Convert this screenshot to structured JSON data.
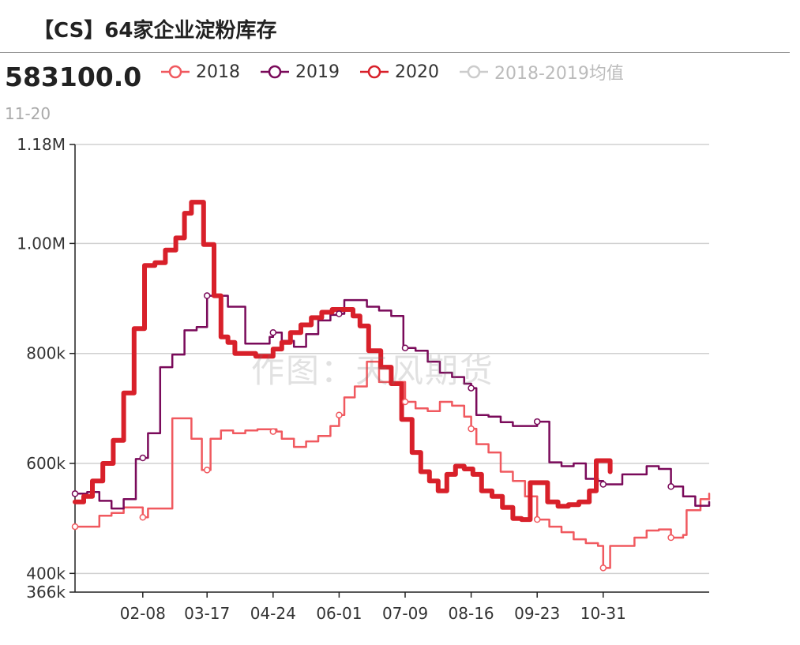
{
  "header": {
    "title": "【CS】64家企业淀粉库存",
    "current_value": "583100.0",
    "current_date": "11-20"
  },
  "watermark": "作图：天风期货",
  "legend": [
    {
      "label": "2018",
      "color": "#f0595f",
      "muted": false
    },
    {
      "label": "2019",
      "color": "#7a0a5a",
      "muted": false
    },
    {
      "label": "2020",
      "color": "#d8202a",
      "muted": false
    },
    {
      "label": "2018-2019均值",
      "color": "#cccccc",
      "muted": true
    }
  ],
  "chart_data": {
    "type": "line",
    "title": "【CS】64家企业淀粉库存",
    "xlabel": "",
    "ylabel": "",
    "x_ticks": [
      "02-08",
      "03-17",
      "04-24",
      "06-01",
      "07-09",
      "08-16",
      "09-23",
      "10-31"
    ],
    "x_range_days": [
      0,
      365
    ],
    "x_tick_days": [
      39,
      76,
      114,
      152,
      190,
      228,
      266,
      304
    ],
    "y_ticks": [
      {
        "value": 366000,
        "label": "366k"
      },
      {
        "value": 400000,
        "label": "400k"
      },
      {
        "value": 600000,
        "label": "600k"
      },
      {
        "value": 800000,
        "label": "800k"
      },
      {
        "value": 1000000,
        "label": "1.00M"
      },
      {
        "value": 1180000,
        "label": "1.18M"
      }
    ],
    "ylim": [
      366000,
      1180000
    ],
    "grid": true,
    "series": [
      {
        "name": "2018",
        "color": "#f0595f",
        "width": 2.5,
        "points": [
          [
            0,
            485000
          ],
          [
            7,
            485000
          ],
          [
            14,
            505000
          ],
          [
            21,
            510000
          ],
          [
            28,
            520000
          ],
          [
            35,
            520000
          ],
          [
            39,
            502000
          ],
          [
            42,
            518000
          ],
          [
            49,
            518000
          ],
          [
            53,
            518000
          ],
          [
            56,
            682000
          ],
          [
            63,
            682000
          ],
          [
            67,
            645000
          ],
          [
            70,
            645000
          ],
          [
            73,
            588000
          ],
          [
            76,
            588000
          ],
          [
            78,
            645000
          ],
          [
            84,
            660000
          ],
          [
            91,
            655000
          ],
          [
            98,
            660000
          ],
          [
            105,
            662000
          ],
          [
            112,
            662000
          ],
          [
            116,
            658000
          ],
          [
            119,
            645000
          ],
          [
            126,
            630000
          ],
          [
            133,
            640000
          ],
          [
            140,
            650000
          ],
          [
            147,
            668000
          ],
          [
            152,
            688000
          ],
          [
            155,
            720000
          ],
          [
            161,
            740000
          ],
          [
            168,
            785000
          ],
          [
            175,
            748000
          ],
          [
            182,
            748000
          ],
          [
            189,
            748000
          ],
          [
            190,
            712000
          ],
          [
            196,
            700000
          ],
          [
            203,
            695000
          ],
          [
            210,
            712000
          ],
          [
            217,
            705000
          ],
          [
            224,
            685000
          ],
          [
            228,
            663000
          ],
          [
            231,
            635000
          ],
          [
            238,
            620000
          ],
          [
            245,
            585000
          ],
          [
            252,
            568000
          ],
          [
            259,
            540000
          ],
          [
            266,
            498000
          ],
          [
            273,
            485000
          ],
          [
            280,
            475000
          ],
          [
            287,
            462000
          ],
          [
            294,
            455000
          ],
          [
            301,
            450000
          ],
          [
            304,
            410000
          ],
          [
            308,
            450000
          ],
          [
            315,
            450000
          ],
          [
            322,
            465000
          ],
          [
            329,
            478000
          ],
          [
            336,
            480000
          ],
          [
            343,
            465000
          ],
          [
            350,
            470000
          ],
          [
            352,
            515000
          ],
          [
            357,
            515000
          ],
          [
            360,
            535000
          ],
          [
            365,
            545000
          ]
        ],
        "markers": [
          [
            0,
            485000
          ],
          [
            39,
            502000
          ],
          [
            76,
            588000
          ],
          [
            114,
            658000
          ],
          [
            152,
            688000
          ],
          [
            190,
            712000
          ],
          [
            228,
            663000
          ],
          [
            266,
            498000
          ],
          [
            304,
            410000
          ],
          [
            343,
            465000
          ]
        ]
      },
      {
        "name": "2019",
        "color": "#7a0a5a",
        "width": 2.5,
        "points": [
          [
            0,
            545000
          ],
          [
            7,
            548000
          ],
          [
            14,
            532000
          ],
          [
            21,
            518000
          ],
          [
            28,
            535000
          ],
          [
            35,
            608000
          ],
          [
            39,
            610000
          ],
          [
            42,
            655000
          ],
          [
            49,
            775000
          ],
          [
            56,
            798000
          ],
          [
            63,
            842000
          ],
          [
            70,
            848000
          ],
          [
            76,
            905000
          ],
          [
            84,
            905000
          ],
          [
            88,
            885000
          ],
          [
            91,
            885000
          ],
          [
            98,
            818000
          ],
          [
            105,
            818000
          ],
          [
            112,
            830000
          ],
          [
            114,
            838000
          ],
          [
            119,
            823000
          ],
          [
            126,
            812000
          ],
          [
            133,
            835000
          ],
          [
            140,
            860000
          ],
          [
            147,
            870000
          ],
          [
            152,
            872000
          ],
          [
            155,
            897000
          ],
          [
            161,
            897000
          ],
          [
            168,
            885000
          ],
          [
            175,
            878000
          ],
          [
            182,
            868000
          ],
          [
            189,
            810000
          ],
          [
            196,
            805000
          ],
          [
            203,
            785000
          ],
          [
            210,
            765000
          ],
          [
            217,
            757000
          ],
          [
            224,
            745000
          ],
          [
            228,
            737000
          ],
          [
            231,
            688000
          ],
          [
            238,
            685000
          ],
          [
            245,
            675000
          ],
          [
            252,
            668000
          ],
          [
            259,
            668000
          ],
          [
            266,
            676000
          ],
          [
            273,
            602000
          ],
          [
            280,
            595000
          ],
          [
            287,
            600000
          ],
          [
            294,
            572000
          ],
          [
            301,
            568000
          ],
          [
            304,
            562000
          ],
          [
            308,
            562000
          ],
          [
            315,
            580000
          ],
          [
            322,
            580000
          ],
          [
            329,
            595000
          ],
          [
            336,
            590000
          ],
          [
            343,
            558000
          ],
          [
            350,
            540000
          ],
          [
            357,
            523000
          ],
          [
            365,
            530000
          ]
        ],
        "markers": [
          [
            0,
            545000
          ],
          [
            39,
            610000
          ],
          [
            76,
            905000
          ],
          [
            114,
            838000
          ],
          [
            152,
            872000
          ],
          [
            190,
            810000
          ],
          [
            228,
            737000
          ],
          [
            266,
            676000
          ],
          [
            304,
            562000
          ],
          [
            343,
            558000
          ]
        ]
      },
      {
        "name": "2020",
        "color": "#d8202a",
        "width": 6,
        "points": [
          [
            0,
            530000
          ],
          [
            5,
            540000
          ],
          [
            10,
            568000
          ],
          [
            16,
            600000
          ],
          [
            22,
            642000
          ],
          [
            28,
            728000
          ],
          [
            34,
            845000
          ],
          [
            40,
            960000
          ],
          [
            46,
            965000
          ],
          [
            52,
            988000
          ],
          [
            58,
            1010000
          ],
          [
            63,
            1055000
          ],
          [
            67,
            1075000
          ],
          [
            70,
            1075000
          ],
          [
            74,
            998000
          ],
          [
            80,
            905000
          ],
          [
            84,
            830000
          ],
          [
            88,
            820000
          ],
          [
            92,
            800000
          ],
          [
            98,
            800000
          ],
          [
            104,
            795000
          ],
          [
            110,
            795000
          ],
          [
            114,
            808000
          ],
          [
            119,
            820000
          ],
          [
            124,
            838000
          ],
          [
            130,
            852000
          ],
          [
            136,
            865000
          ],
          [
            142,
            875000
          ],
          [
            148,
            880000
          ],
          [
            154,
            880000
          ],
          [
            160,
            868000
          ],
          [
            164,
            850000
          ],
          [
            169,
            805000
          ],
          [
            176,
            775000
          ],
          [
            182,
            745000
          ],
          [
            188,
            680000
          ],
          [
            194,
            620000
          ],
          [
            199,
            585000
          ],
          [
            204,
            568000
          ],
          [
            209,
            550000
          ],
          [
            214,
            580000
          ],
          [
            219,
            595000
          ],
          [
            224,
            590000
          ],
          [
            229,
            580000
          ],
          [
            234,
            550000
          ],
          [
            240,
            540000
          ],
          [
            246,
            520000
          ],
          [
            252,
            500000
          ],
          [
            257,
            498000
          ],
          [
            262,
            565000
          ],
          [
            267,
            565000
          ],
          [
            272,
            530000
          ],
          [
            278,
            522000
          ],
          [
            284,
            525000
          ],
          [
            290,
            530000
          ],
          [
            296,
            550000
          ],
          [
            300,
            605000
          ],
          [
            304,
            605000
          ],
          [
            308,
            585000
          ]
        ],
        "markers": []
      },
      {
        "name": "2018-2019均值",
        "color": "#cccccc",
        "width": 0,
        "points": [],
        "markers": []
      }
    ]
  }
}
